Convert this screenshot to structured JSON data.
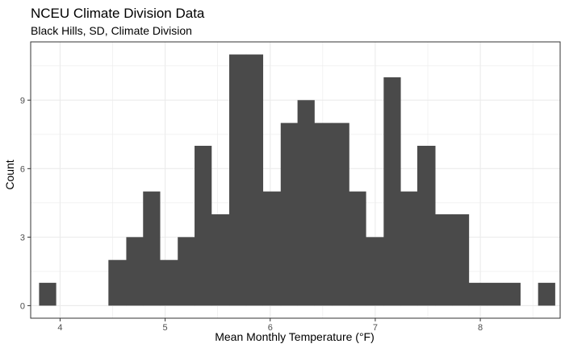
{
  "chart_data": {
    "type": "bar",
    "subtype": "histogram",
    "title": "NCEU Climate Division Data",
    "subtitle": "Black Hills, SD, Climate Division",
    "xlabel": "Mean Monthly Temperature (°F)",
    "ylabel": "Count",
    "xlim": [
      3.72,
      8.76
    ],
    "ylim": [
      -0.55,
      11.55
    ],
    "x_ticks": [
      4,
      5,
      6,
      7,
      8
    ],
    "y_ticks": [
      0,
      3,
      6,
      9
    ],
    "grid": true,
    "bar_color": "#4a4a4a",
    "panel_border_color": "#333333",
    "grid_color": "#ebebeb",
    "bins": [
      {
        "x0": 3.8,
        "x1": 3.96,
        "count": 1
      },
      {
        "x0": 3.96,
        "x1": 4.13,
        "count": 0
      },
      {
        "x0": 4.13,
        "x1": 4.3,
        "count": 0
      },
      {
        "x0": 4.3,
        "x1": 4.46,
        "count": 0
      },
      {
        "x0": 4.46,
        "x1": 4.63,
        "count": 2
      },
      {
        "x0": 4.63,
        "x1": 4.79,
        "count": 3
      },
      {
        "x0": 4.79,
        "x1": 4.95,
        "count": 5
      },
      {
        "x0": 4.95,
        "x1": 5.12,
        "count": 2
      },
      {
        "x0": 5.12,
        "x1": 5.28,
        "count": 3
      },
      {
        "x0": 5.28,
        "x1": 5.44,
        "count": 7
      },
      {
        "x0": 5.44,
        "x1": 5.61,
        "count": 4
      },
      {
        "x0": 5.61,
        "x1": 5.77,
        "count": 11
      },
      {
        "x0": 5.77,
        "x1": 5.93,
        "count": 11
      },
      {
        "x0": 5.93,
        "x1": 6.1,
        "count": 5
      },
      {
        "x0": 6.1,
        "x1": 6.26,
        "count": 8
      },
      {
        "x0": 6.26,
        "x1": 6.42,
        "count": 9
      },
      {
        "x0": 6.42,
        "x1": 6.59,
        "count": 8
      },
      {
        "x0": 6.59,
        "x1": 6.75,
        "count": 8
      },
      {
        "x0": 6.75,
        "x1": 6.91,
        "count": 5
      },
      {
        "x0": 6.91,
        "x1": 7.08,
        "count": 3
      },
      {
        "x0": 7.08,
        "x1": 7.24,
        "count": 10
      },
      {
        "x0": 7.24,
        "x1": 7.4,
        "count": 5
      },
      {
        "x0": 7.4,
        "x1": 7.57,
        "count": 7
      },
      {
        "x0": 7.57,
        "x1": 7.73,
        "count": 4
      },
      {
        "x0": 7.73,
        "x1": 7.89,
        "count": 4
      },
      {
        "x0": 7.89,
        "x1": 8.06,
        "count": 1
      },
      {
        "x0": 8.06,
        "x1": 8.22,
        "count": 1
      },
      {
        "x0": 8.22,
        "x1": 8.38,
        "count": 1
      },
      {
        "x0": 8.38,
        "x1": 8.55,
        "count": 0
      },
      {
        "x0": 8.55,
        "x1": 8.71,
        "count": 1
      }
    ]
  }
}
